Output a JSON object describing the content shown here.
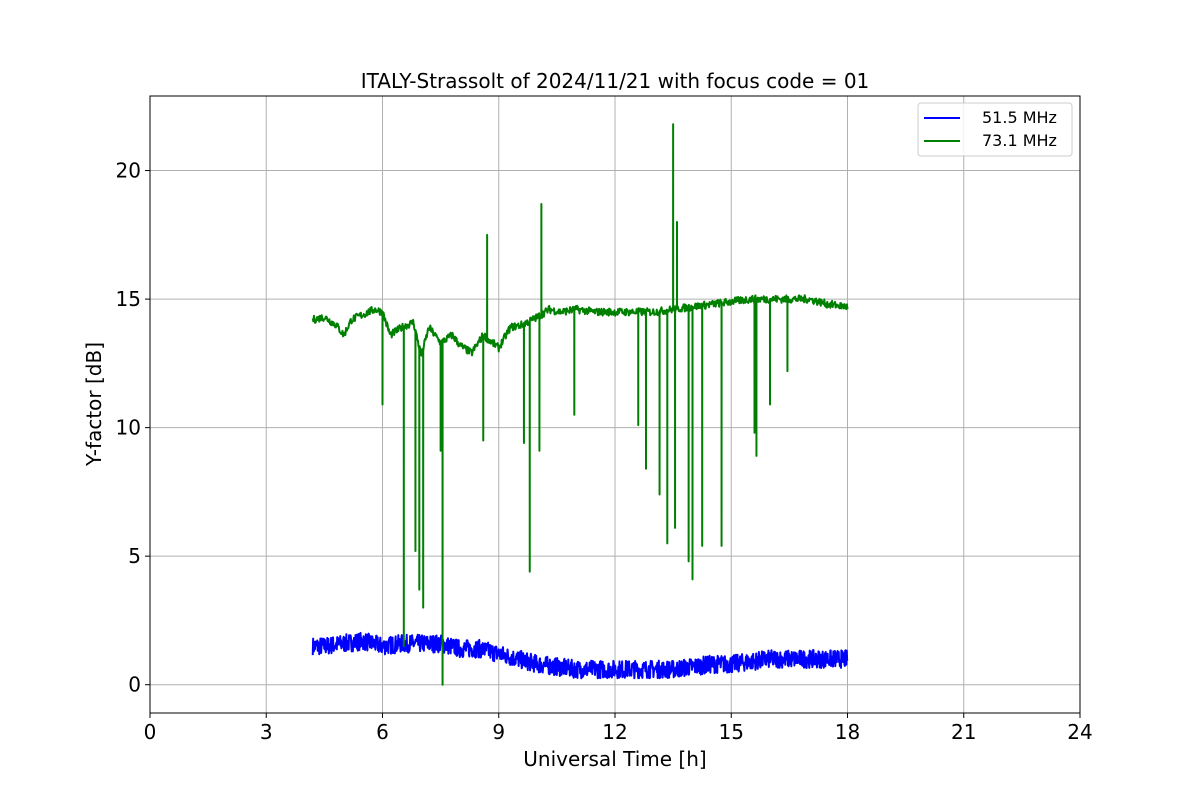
{
  "chart_data": {
    "type": "line",
    "title": "ITALY-Strassolt of 2024/11/21 with focus code = 01",
    "xlabel": "Universal Time [h]",
    "ylabel": "Y-factor [dB]",
    "xlim": [
      0,
      24
    ],
    "ylim": [
      -1.1,
      22.9
    ],
    "xticks": [
      0,
      3,
      6,
      9,
      12,
      15,
      18,
      21,
      24
    ],
    "yticks": [
      0,
      5,
      10,
      15,
      20
    ],
    "grid": true,
    "legend_position": "top-right",
    "colors": {
      "series_1": "#0000ff",
      "series_2": "#008000"
    },
    "series": [
      {
        "name": "51.5 MHz",
        "x": [
          4.2,
          4.5,
          5.0,
          5.5,
          6.0,
          6.5,
          7.0,
          7.5,
          8.0,
          8.5,
          9.0,
          9.5,
          10.0,
          10.5,
          11.0,
          11.5,
          12.0,
          12.5,
          13.0,
          13.5,
          14.0,
          14.5,
          15.0,
          15.5,
          16.0,
          16.5,
          17.0,
          17.5,
          18.0
        ],
        "values": [
          1.5,
          1.5,
          1.6,
          1.7,
          1.5,
          1.6,
          1.6,
          1.6,
          1.4,
          1.4,
          1.2,
          1.0,
          0.8,
          0.7,
          0.6,
          0.6,
          0.6,
          0.6,
          0.6,
          0.6,
          0.7,
          0.8,
          0.8,
          0.9,
          1.0,
          1.0,
          1.0,
          1.0,
          1.0
        ],
        "band": 0.35
      },
      {
        "name": "73.1 MHz",
        "x": [
          4.2,
          4.5,
          4.8,
          5.0,
          5.2,
          5.5,
          5.8,
          6.0,
          6.2,
          6.5,
          6.8,
          7.0,
          7.2,
          7.5,
          7.8,
          8.0,
          8.3,
          8.6,
          9.0,
          9.3,
          9.6,
          10.0,
          10.3,
          10.6,
          11.0,
          11.5,
          12.0,
          12.5,
          13.0,
          13.5,
          14.0,
          14.5,
          15.0,
          15.5,
          16.0,
          16.5,
          17.0,
          17.5,
          18.0
        ],
        "values": [
          14.2,
          14.3,
          14.0,
          13.6,
          14.2,
          14.4,
          14.6,
          14.5,
          13.6,
          13.9,
          14.1,
          12.8,
          13.9,
          13.3,
          13.6,
          13.2,
          12.9,
          13.6,
          13.1,
          13.9,
          14.0,
          14.3,
          14.6,
          14.5,
          14.6,
          14.5,
          14.5,
          14.5,
          14.5,
          14.6,
          14.7,
          14.8,
          14.9,
          15.0,
          15.0,
          15.0,
          15.0,
          14.8,
          14.7
        ],
        "spikes": [
          {
            "x": 6.0,
            "y": 10.9
          },
          {
            "x": 6.55,
            "y": 1.5
          },
          {
            "x": 6.85,
            "y": 5.2
          },
          {
            "x": 6.95,
            "y": 3.7
          },
          {
            "x": 7.05,
            "y": 3.0
          },
          {
            "x": 7.5,
            "y": 9.1
          },
          {
            "x": 7.55,
            "y": 0.0
          },
          {
            "x": 8.6,
            "y": 9.5
          },
          {
            "x": 8.7,
            "y": 17.5
          },
          {
            "x": 9.65,
            "y": 9.4
          },
          {
            "x": 9.8,
            "y": 4.4
          },
          {
            "x": 10.05,
            "y": 9.1
          },
          {
            "x": 10.1,
            "y": 18.7
          },
          {
            "x": 10.95,
            "y": 10.5
          },
          {
            "x": 12.6,
            "y": 10.1
          },
          {
            "x": 12.8,
            "y": 8.4
          },
          {
            "x": 13.15,
            "y": 7.4
          },
          {
            "x": 13.35,
            "y": 5.5
          },
          {
            "x": 13.5,
            "y": 21.8
          },
          {
            "x": 13.55,
            "y": 6.1
          },
          {
            "x": 13.6,
            "y": 18.0
          },
          {
            "x": 13.9,
            "y": 4.8
          },
          {
            "x": 14.0,
            "y": 4.1
          },
          {
            "x": 14.25,
            "y": 5.4
          },
          {
            "x": 14.75,
            "y": 5.4
          },
          {
            "x": 15.6,
            "y": 9.8
          },
          {
            "x": 15.65,
            "y": 8.9
          },
          {
            "x": 16.0,
            "y": 10.9
          },
          {
            "x": 16.45,
            "y": 12.2
          }
        ]
      }
    ]
  }
}
